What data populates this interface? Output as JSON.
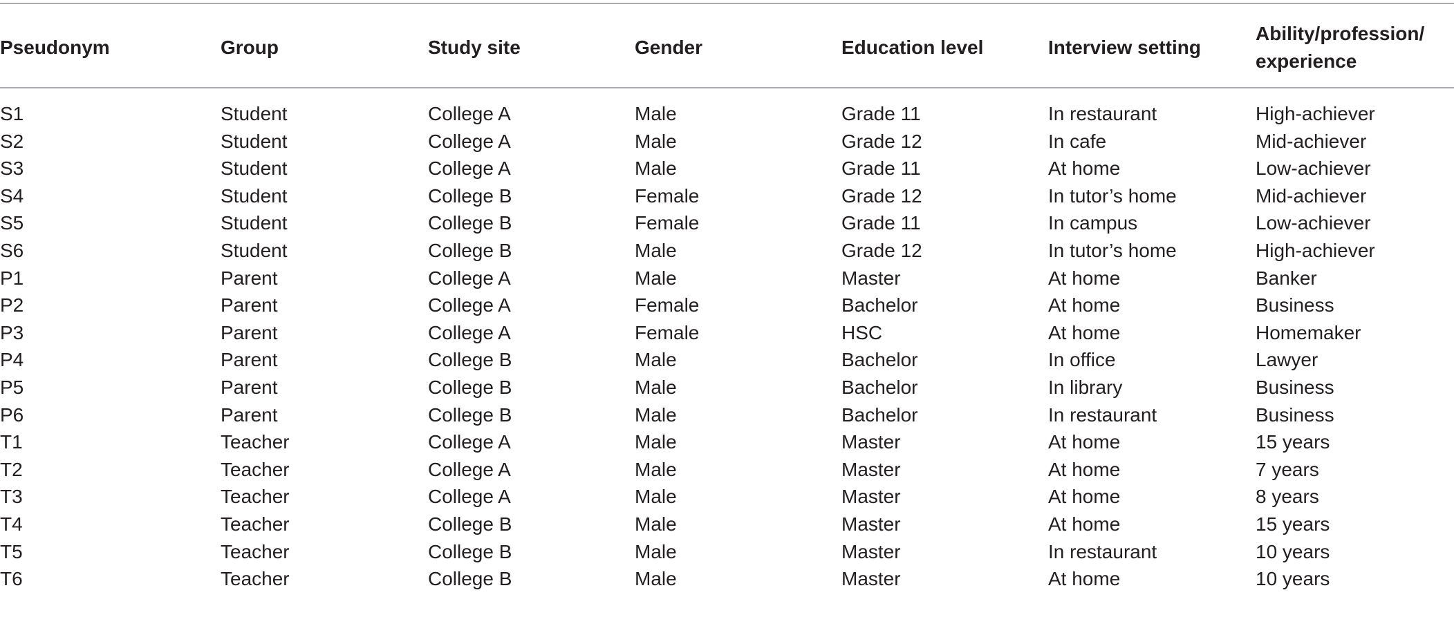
{
  "table": {
    "headers": [
      "Pseudonym",
      "Group",
      "Study site",
      "Gender",
      "Education level",
      "Interview setting",
      "Ability/profession/\nexperience"
    ],
    "header_lines_last": [
      "Ability/profession/",
      "experience"
    ],
    "rows": [
      [
        "S1",
        "Student",
        "College A",
        "Male",
        "Grade 11",
        "In restaurant",
        "High-achiever"
      ],
      [
        "S2",
        "Student",
        "College A",
        "Male",
        "Grade 12",
        "In cafe",
        "Mid-achiever"
      ],
      [
        "S3",
        "Student",
        "College A",
        "Male",
        "Grade 11",
        "At home",
        "Low-achiever"
      ],
      [
        "S4",
        "Student",
        "College B",
        "Female",
        "Grade 12",
        "In tutor’s home",
        "Mid-achiever"
      ],
      [
        "S5",
        "Student",
        "College B",
        "Female",
        "Grade 11",
        "In campus",
        "Low-achiever"
      ],
      [
        "S6",
        "Student",
        "College B",
        "Male",
        "Grade 12",
        "In tutor’s home",
        "High-achiever"
      ],
      [
        "P1",
        "Parent",
        "College A",
        "Male",
        "Master",
        "At home",
        "Banker"
      ],
      [
        "P2",
        "Parent",
        "College A",
        "Female",
        "Bachelor",
        "At home",
        "Business"
      ],
      [
        "P3",
        "Parent",
        "College A",
        "Female",
        "HSC",
        "At home",
        "Homemaker"
      ],
      [
        "P4",
        "Parent",
        "College B",
        "Male",
        "Bachelor",
        "In office",
        "Lawyer"
      ],
      [
        "P5",
        "Parent",
        "College B",
        "Male",
        "Bachelor",
        "In library",
        "Business"
      ],
      [
        "P6",
        "Parent",
        "College B",
        "Male",
        "Bachelor",
        "In restaurant",
        "Business"
      ],
      [
        "T1",
        "Teacher",
        "College A",
        "Male",
        "Master",
        "At home",
        "15 years"
      ],
      [
        "T2",
        "Teacher",
        "College A",
        "Male",
        "Master",
        "At home",
        "7 years"
      ],
      [
        "T3",
        "Teacher",
        "College A",
        "Male",
        "Master",
        "At home",
        "8 years"
      ],
      [
        "T4",
        "Teacher",
        "College B",
        "Male",
        "Master",
        "At home",
        "15 years"
      ],
      [
        "T5",
        "Teacher",
        "College B",
        "Male",
        "Master",
        "In restaurant",
        "10 years"
      ],
      [
        "T6",
        "Teacher",
        "College B",
        "Male",
        "Master",
        "At home",
        "10 years"
      ]
    ]
  }
}
